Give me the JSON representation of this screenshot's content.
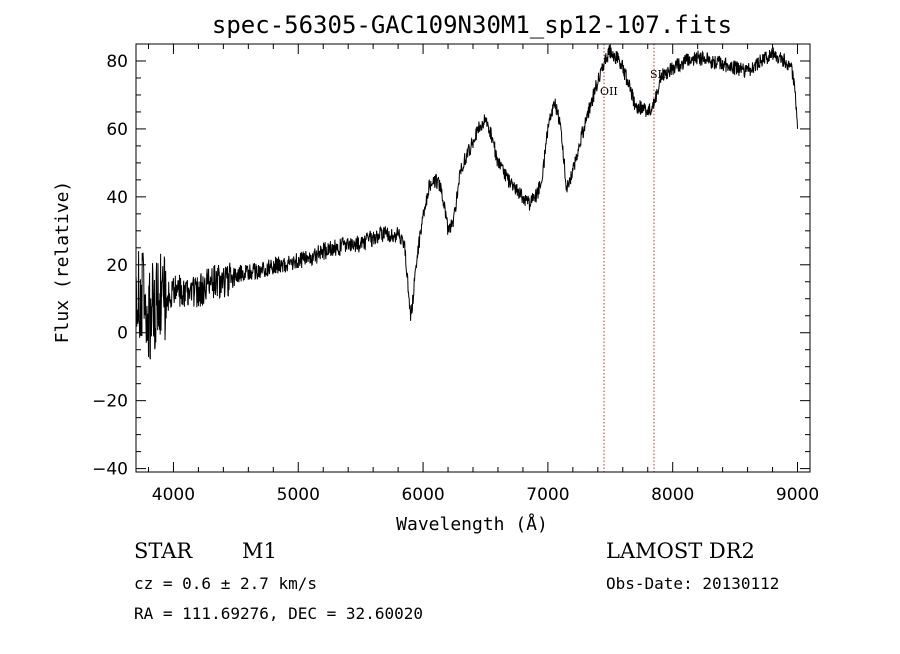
{
  "chart_data": {
    "type": "line",
    "title": "spec-56305-GAC109N30M1_sp12-107.fits",
    "xlabel": "Wavelength (Å)",
    "ylabel": "Flux (relative)",
    "xlim": [
      3700,
      9100
    ],
    "ylim": [
      -41,
      85
    ],
    "xticks": [
      4000,
      5000,
      6000,
      7000,
      8000,
      9000
    ],
    "yticks": [
      -40,
      -20,
      0,
      20,
      40,
      60,
      80
    ],
    "grid": false,
    "series": [
      {
        "x": [
          3700,
          3750,
          3800,
          3850,
          3900,
          3950,
          4000,
          4100,
          4200,
          4300,
          4400,
          4500,
          4600,
          4700,
          4800,
          4900,
          5000,
          5100,
          5200,
          5300,
          5400,
          5500,
          5600,
          5700,
          5800,
          5850,
          5880,
          5900,
          5920,
          5950,
          6000,
          6050,
          6100,
          6150,
          6200,
          6250,
          6300,
          6400,
          6450,
          6500,
          6550,
          6600,
          6700,
          6800,
          6850,
          6900,
          6950,
          7000,
          7050,
          7100,
          7150,
          7200,
          7300,
          7400,
          7450,
          7500,
          7550,
          7600,
          7650,
          7700,
          7750,
          7800,
          7850,
          7900,
          8000,
          8100,
          8200,
          8300,
          8400,
          8500,
          8600,
          8700,
          8800,
          8900,
          8950,
          8980,
          9000
        ],
        "y": [
          10,
          12,
          5,
          8,
          12,
          10,
          13,
          12,
          12,
          15,
          15,
          17,
          18,
          18,
          20,
          20,
          21,
          22,
          24,
          25,
          26,
          26,
          28,
          29,
          29,
          26,
          14,
          5,
          10,
          22,
          34,
          43,
          45,
          42,
          30,
          34,
          48,
          56,
          61,
          63,
          58,
          50,
          44,
          40,
          38,
          40,
          44,
          60,
          68,
          62,
          42,
          48,
          62,
          74,
          80,
          83,
          81,
          78,
          73,
          67,
          66,
          65,
          67,
          75,
          78,
          80,
          81,
          80,
          79,
          78,
          77,
          80,
          82,
          80,
          78,
          72,
          60
        ]
      }
    ],
    "annotations": [
      {
        "label": "OII",
        "x": 7450
      },
      {
        "label": "SII",
        "x": 7850
      }
    ]
  },
  "info": {
    "object_class": "STAR",
    "subclass": "M1",
    "survey": "LAMOST DR2",
    "cz": "cz = 0.6 ± 2.7 km/s",
    "obs_date": "Obs-Date: 20130112",
    "coords": "RA = 111.69276, DEC =  32.60020"
  }
}
